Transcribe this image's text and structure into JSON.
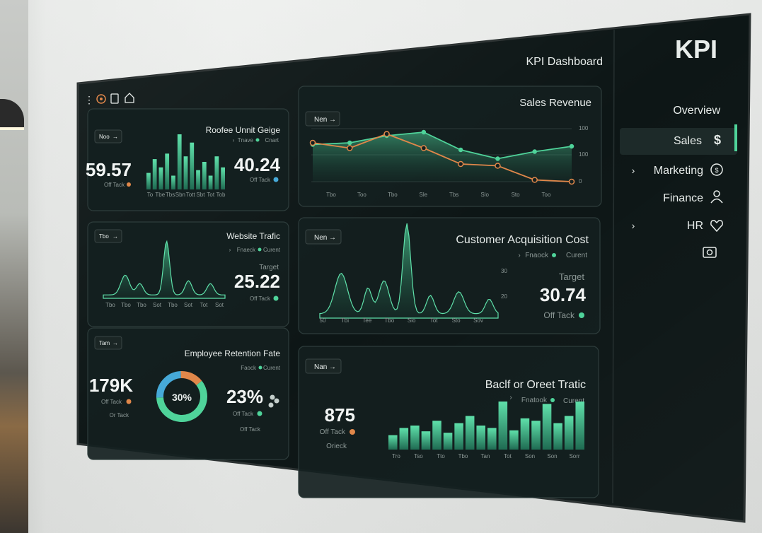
{
  "sidebar": {
    "logo": "KPI",
    "items": [
      {
        "label": "Overview",
        "icon": ""
      },
      {
        "label": "Sales",
        "icon": "dollar-icon"
      },
      {
        "label": "Marketing",
        "icon": "badge-icon"
      },
      {
        "label": "Finance",
        "icon": "people-icon"
      },
      {
        "label": "HR",
        "icon": "heart-icon"
      }
    ],
    "extra_icon": "camera-icon"
  },
  "header": {
    "title": "KPI Dashboard",
    "toolbar_icons": [
      "home-icon",
      "document-icon",
      "alert-icon",
      "more-icon"
    ]
  },
  "cards": {
    "sales_revenue": {
      "title": "Sales Revenue",
      "chip": "Nen",
      "y_ticks": [
        "100",
        "100",
        "0"
      ],
      "x_ticks": [
        "Too",
        "Sto",
        "Slo",
        "Tbs",
        "Sle",
        "Tbo",
        "Too",
        "Tbo"
      ]
    },
    "cac": {
      "title": "Customer Acquisition Cost",
      "chip": "Nen",
      "subtitle": "Curent",
      "subtitle_tag": "Fnaock",
      "target_label": "Target",
      "value": "30.74",
      "status": "Off Tack",
      "y_ticks": [
        "30",
        "20"
      ],
      "x_ticks": [
        "Sov",
        "Sto",
        "Tot",
        "Sio",
        "Tbo",
        "Tee",
        "Tbi",
        "50"
      ]
    },
    "backorder": {
      "title": "Baclf or Oreet Tratic",
      "chip": "Nan",
      "subtitle": "Curent",
      "subtitle_tag": "Fnatook",
      "value": "875",
      "status": "Off Tack",
      "status2": "Orieck",
      "x_ticks": [
        "Sorr",
        "Son",
        "Son",
        "Tot",
        "Tan",
        "Tbo",
        "Tto",
        "Tso",
        "Tro"
      ]
    },
    "rooftop": {
      "title": "Roofee Unnit Geige",
      "chip": "Noo",
      "subtitle": "Cnart",
      "subtitle_tag": "Tnave",
      "value": "40.24",
      "status": "Off Tack",
      "left_value": "59.57",
      "left_status": "Off Tack",
      "x_ticks": [
        "Tob",
        "Tot",
        "Sbt",
        "Tott",
        "Sbn",
        "Tbs",
        "Tbe",
        "To"
      ]
    },
    "website": {
      "title": "Website Trafic",
      "chip": "Tbo",
      "subtitle": "Curent",
      "subtitle_tag": "Fnaeck",
      "target_label": "Target",
      "value": "25.22",
      "status": "Off Tack",
      "x_ticks": [
        "Sot",
        "Tot",
        "Sot",
        "Tbo",
        "Sot",
        "Tbo",
        "Tbo",
        "Tbo"
      ]
    },
    "retention": {
      "title": "Employee Retention Fate",
      "chip": "Tam",
      "subtitle": "Curent",
      "subtitle_tag": "Faock",
      "value": "23%",
      "status": "Off Tack",
      "status2": "Off Tack",
      "donut_label": "30%",
      "left_value": "179K",
      "left_status": "Off Tack",
      "left_status2": "Or Tack"
    }
  },
  "colors": {
    "accent_green": "#4fd39a",
    "accent_orange": "#e0874a",
    "accent_blue": "#46a9d8",
    "panel": "#142020"
  },
  "chart_data": [
    {
      "type": "line",
      "title": "Sales Revenue",
      "categories": [
        "Too",
        "Sto",
        "Slo",
        "Tbs",
        "Sle",
        "Tbo",
        "Too",
        "Tbo"
      ],
      "series": [
        {
          "values": [
            1,
            0.85,
            0.65,
            0.9,
            1.4,
            1.3,
            1.1,
            1.05
          ]
        },
        {
          "values": [
            0,
            0.05,
            0.45,
            0.5,
            0.95,
            1.35,
            0.95,
            1.1
          ]
        }
      ]
    },
    {
      "type": "area",
      "title": "Customer Acquisition Cost",
      "ylim": [
        15,
        30
      ]
    },
    {
      "type": "bar",
      "title": "Baclf or Oreet Tratic",
      "values": [
        0.3,
        0.45,
        0.5,
        0.38,
        0.6,
        0.35,
        0.55,
        0.7,
        0.5,
        0.45,
        1.0,
        0.4,
        0.65,
        0.6,
        0.95,
        0.55,
        0.7,
        1.0
      ]
    },
    {
      "type": "bar",
      "title": "Roofee Unnit Geige",
      "values": [
        0.3,
        0.55,
        0.4,
        0.65,
        0.25,
        1.0,
        0.6,
        0.85,
        0.35,
        0.5,
        0.25,
        0.6,
        0.4
      ]
    },
    {
      "type": "area",
      "title": "Website Trafic"
    },
    {
      "type": "pie",
      "title": "Employee Retention Fate",
      "values": [
        60,
        25,
        15
      ]
    }
  ]
}
